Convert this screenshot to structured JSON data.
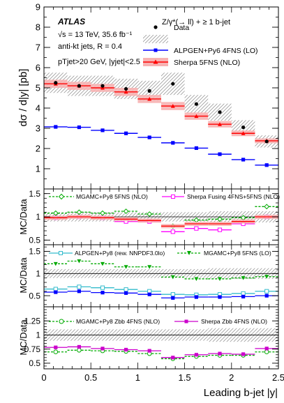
{
  "chart_data": [
    {
      "type": "scatter",
      "panel": "main",
      "ylabel": "dσ / d|y| [pb]",
      "ylim": [
        0,
        9
      ],
      "yticks": [
        "1",
        "2",
        "3",
        "4",
        "5",
        "6",
        "7",
        "8",
        "9"
      ],
      "atlas_label": "ATLAS",
      "process_label": "Z/γ*(→ ll) + ≥ 1 b-jet",
      "info_lines": [
        "√s = 13 TeV, 35.6 fb⁻¹",
        "anti-kt jets, R = 0.4",
        "pTjet>20 GeV, |yjet|<2.5"
      ],
      "x_bin_edges": [
        0,
        0.25,
        0.5,
        0.75,
        1.0,
        1.25,
        1.5,
        1.75,
        2.0,
        2.25,
        2.5
      ],
      "legend_position": "top-right",
      "series": [
        {
          "name": "Data",
          "style": "points",
          "color": "#000000",
          "values": [
            5.25,
            5.1,
            5.1,
            4.95,
            4.85,
            5.2,
            4.2,
            3.8,
            3.05,
            2.35
          ],
          "band_half_width": [
            0.5,
            0.5,
            0.5,
            0.5,
            0.5,
            0.55,
            0.45,
            0.42,
            0.35,
            0.3
          ]
        },
        {
          "name": "ALPGEN+Py6 4FNS (LO)",
          "style": "line",
          "color": "#0000ff",
          "values": [
            3.07,
            3.05,
            2.9,
            2.75,
            2.55,
            2.28,
            2.02,
            1.72,
            1.45,
            1.18
          ]
        },
        {
          "name": "Sherpa 5FNS (NLO)",
          "style": "line-band",
          "color": "#ff0000",
          "values": [
            5.2,
            5.1,
            5.0,
            4.8,
            4.45,
            4.1,
            3.6,
            3.2,
            2.75,
            2.38
          ],
          "band_half_width": [
            0.2,
            0.2,
            0.2,
            0.2,
            0.2,
            0.2,
            0.18,
            0.16,
            0.14,
            0.12
          ]
        }
      ]
    },
    {
      "type": "line",
      "panel": "ratio1",
      "ylabel": "MC/Data",
      "ylim": [
        0.4,
        1.6
      ],
      "yticks": [
        "0.5",
        "1",
        "1.5"
      ],
      "legend_position": "top",
      "series": [
        {
          "name": "MGAMC+Py8 5FNS (NLO)",
          "color": "#00aa00",
          "marker": "open-diamond",
          "dashed": true,
          "values": [
            1.08,
            1.1,
            1.08,
            1.12,
            1.06,
            0.8,
            0.93,
            0.95,
            0.98,
            1.22
          ]
        },
        {
          "name": "Sherpa Fusing 4FNS+5FNS (NLO)",
          "color": "#ff00ff",
          "marker": "open-square",
          "values": [
            0.98,
            1.0,
            0.98,
            0.9,
            0.9,
            0.68,
            0.75,
            0.72,
            0.85,
            1.0
          ]
        },
        {
          "name": "Sherpa 5FNS (NLO)",
          "color": "#ff0000",
          "band": true,
          "values": [
            0.98,
            1.0,
            0.98,
            0.95,
            0.92,
            0.8,
            0.85,
            0.85,
            0.9,
            1.0
          ]
        }
      ],
      "data_band_half_width": [
        0.1,
        0.1,
        0.1,
        0.1,
        0.1,
        0.1,
        0.1,
        0.12,
        0.12,
        0.12
      ]
    },
    {
      "type": "line",
      "panel": "ratio2",
      "ylabel": "MC/Data",
      "ylim": [
        0.25,
        1.65
      ],
      "yticks": [
        "0.5",
        "1",
        "1.5"
      ],
      "legend_position": "top",
      "series": [
        {
          "name": "ALPGEN+Py8 (rew. NNPDF3.0lo)",
          "color": "#33bbcc",
          "marker": "open-square",
          "values": [
            0.65,
            0.7,
            0.68,
            0.64,
            0.6,
            0.53,
            0.52,
            0.53,
            0.55,
            0.6
          ]
        },
        {
          "name": "MGAMC+Py8 5FNS (LO)",
          "color": "#00aa00",
          "marker": "filled-triangle-down",
          "dashed": true,
          "values": [
            1.22,
            1.28,
            1.22,
            1.15,
            1.15,
            0.92,
            0.88,
            0.88,
            0.9,
            0.93
          ]
        },
        {
          "name": "ALPGEN+Py6 4FNS (LO)",
          "color": "#0000ff",
          "marker": "filled-square",
          "values": [
            0.58,
            0.6,
            0.57,
            0.56,
            0.53,
            0.45,
            0.47,
            0.47,
            0.48,
            0.5
          ]
        }
      ],
      "data_band_half_width": [
        0.1,
        0.1,
        0.1,
        0.1,
        0.1,
        0.1,
        0.1,
        0.12,
        0.12,
        0.12
      ]
    },
    {
      "type": "line",
      "panel": "ratio3",
      "ylabel": "MC/Data",
      "ylim": [
        0.4,
        1.5
      ],
      "yticks": [
        "0.5",
        "0.75",
        "1",
        "1.25"
      ],
      "xlabel": "Leading b-jet |y|",
      "xlim": [
        0,
        2.5
      ],
      "xticks": [
        "0",
        "0.5",
        "1",
        "1.5",
        "2",
        "2.5"
      ],
      "legend_position": "top",
      "series": [
        {
          "name": "MGAMC+Py8 Zbb 4FNS (NLO)",
          "color": "#00aa00",
          "marker": "open-circle",
          "dashed": true,
          "values": [
            0.7,
            0.73,
            0.72,
            0.71,
            0.67,
            0.58,
            0.62,
            0.64,
            0.64,
            0.7
          ]
        },
        {
          "name": "Sherpa Zbb 4FNS (NLO)",
          "color": "#cc00cc",
          "marker": "filled-square",
          "values": [
            0.78,
            0.79,
            0.76,
            0.74,
            0.72,
            0.6,
            0.65,
            0.67,
            0.66,
            0.76
          ]
        }
      ],
      "data_band_half_width": [
        0.1,
        0.1,
        0.1,
        0.1,
        0.1,
        0.1,
        0.1,
        0.12,
        0.12,
        0.12
      ]
    }
  ]
}
